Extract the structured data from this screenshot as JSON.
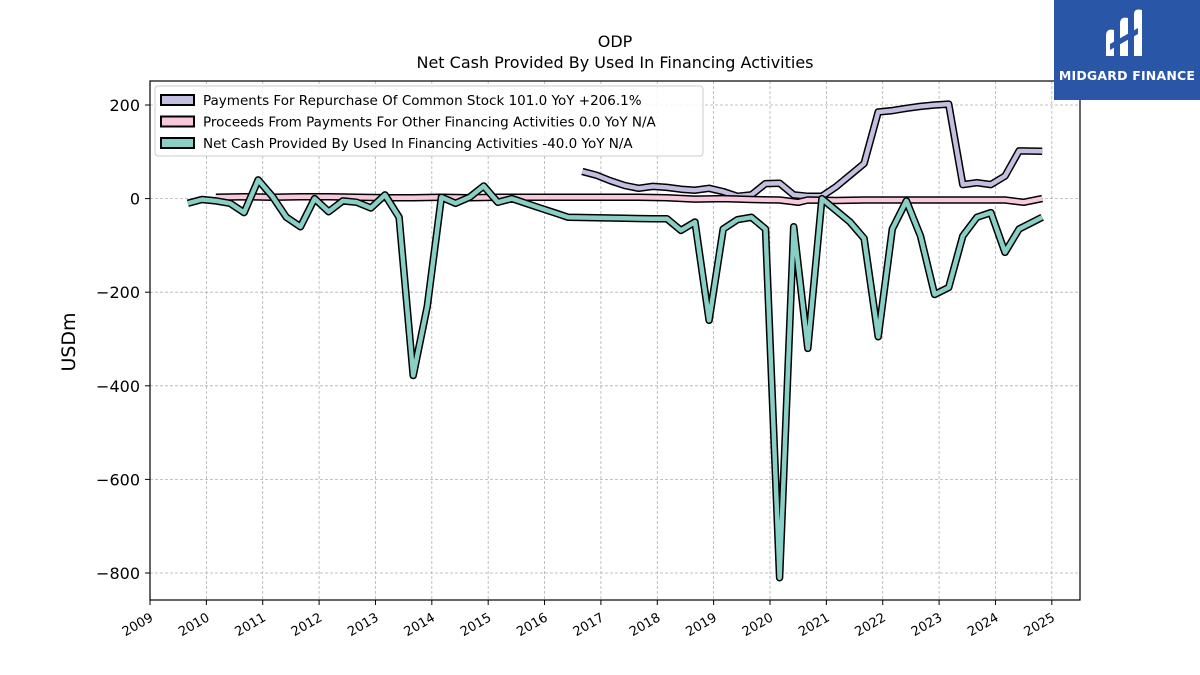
{
  "title_line1": "ODP",
  "title_line2": "Net Cash Provided By Used In Financing Activities",
  "brand": {
    "name": "MIDGARD FINANCE",
    "color": "#2a56a8"
  },
  "chart_data": {
    "type": "line",
    "ylabel": "USDm",
    "xlim": [
      2009.0,
      2025.5
    ],
    "ylim": [
      -860,
      250
    ],
    "yticks": [
      200,
      0,
      -200,
      -400,
      -600,
      -800
    ],
    "ytick_labels": [
      "200",
      "0",
      "−200",
      "−400",
      "−600",
      "−800"
    ],
    "xticks": [
      2009,
      2010,
      2011,
      2012,
      2013,
      2014,
      2015,
      2016,
      2017,
      2018,
      2019,
      2020,
      2021,
      2022,
      2023,
      2024,
      2025
    ],
    "grid": true,
    "legend_position": "top-left",
    "series": [
      {
        "name": "Payments For Repurchase Of Common Stock",
        "legend": "Payments For Repurchase Of Common Stock  101.0 YoY +206.1%",
        "color": "#c2bfe0",
        "points": [
          [
            2016.67,
            58
          ],
          [
            2016.92,
            50
          ],
          [
            2017.17,
            38
          ],
          [
            2017.42,
            28
          ],
          [
            2017.67,
            22
          ],
          [
            2017.92,
            26
          ],
          [
            2018.17,
            24
          ],
          [
            2018.42,
            20
          ],
          [
            2018.67,
            18
          ],
          [
            2018.92,
            22
          ],
          [
            2019.17,
            15
          ],
          [
            2019.42,
            5
          ],
          [
            2019.67,
            8
          ],
          [
            2019.92,
            32
          ],
          [
            2020.17,
            33
          ],
          [
            2020.42,
            8
          ],
          [
            2020.67,
            5
          ],
          [
            2020.92,
            5
          ],
          [
            2021.17,
            25
          ],
          [
            2021.42,
            50
          ],
          [
            2021.67,
            75
          ],
          [
            2021.92,
            185
          ],
          [
            2022.17,
            188
          ],
          [
            2022.42,
            193
          ],
          [
            2022.67,
            197
          ],
          [
            2022.92,
            200
          ],
          [
            2023.17,
            202
          ],
          [
            2023.42,
            30
          ],
          [
            2023.67,
            34
          ],
          [
            2023.92,
            30
          ],
          [
            2024.17,
            48
          ],
          [
            2024.42,
            102
          ],
          [
            2024.83,
            101
          ]
        ]
      },
      {
        "name": "Proceeds From Payments For Other Financing Activities",
        "legend": "Proceeds From Payments For Other Financing Activities  0.0 YoY N/A",
        "color": "#f8c8dc",
        "points": [
          [
            2010.17,
            3
          ],
          [
            2010.67,
            4
          ],
          [
            2011.17,
            3
          ],
          [
            2011.67,
            4
          ],
          [
            2012.17,
            4
          ],
          [
            2012.67,
            3
          ],
          [
            2013.17,
            2
          ],
          [
            2013.67,
            2
          ],
          [
            2014.17,
            3
          ],
          [
            2014.67,
            2
          ],
          [
            2015.17,
            3
          ],
          [
            2015.67,
            3
          ],
          [
            2016.17,
            3
          ],
          [
            2016.67,
            3
          ],
          [
            2017.17,
            3
          ],
          [
            2017.67,
            3
          ],
          [
            2018.17,
            2
          ],
          [
            2018.67,
            -1
          ],
          [
            2019.17,
            0
          ],
          [
            2019.67,
            -2
          ],
          [
            2020.17,
            -3
          ],
          [
            2020.5,
            -8
          ],
          [
            2020.67,
            -3
          ],
          [
            2021.17,
            -4
          ],
          [
            2021.67,
            -3
          ],
          [
            2022.17,
            -3
          ],
          [
            2022.67,
            -3
          ],
          [
            2023.17,
            -3
          ],
          [
            2023.67,
            -3
          ],
          [
            2024.17,
            -3
          ],
          [
            2024.5,
            -8
          ],
          [
            2024.83,
            0
          ]
        ]
      },
      {
        "name": "Net Cash Provided By Used In Financing Activities",
        "legend": "Net Cash Provided By Used In Financing Activities  -40.0 YoY N/A",
        "color": "#88cfc5",
        "points": [
          [
            2009.67,
            -10
          ],
          [
            2009.92,
            -2
          ],
          [
            2010.17,
            -5
          ],
          [
            2010.42,
            -10
          ],
          [
            2010.67,
            -30
          ],
          [
            2010.92,
            40
          ],
          [
            2011.17,
            5
          ],
          [
            2011.42,
            -40
          ],
          [
            2011.67,
            -60
          ],
          [
            2011.92,
            0
          ],
          [
            2012.17,
            -28
          ],
          [
            2012.42,
            -5
          ],
          [
            2012.67,
            -8
          ],
          [
            2012.92,
            -20
          ],
          [
            2013.17,
            8
          ],
          [
            2013.42,
            -40
          ],
          [
            2013.67,
            -378
          ],
          [
            2013.92,
            -230
          ],
          [
            2014.17,
            3
          ],
          [
            2014.42,
            -10
          ],
          [
            2014.67,
            3
          ],
          [
            2014.92,
            27
          ],
          [
            2015.17,
            -8
          ],
          [
            2015.42,
            0
          ],
          [
            2015.67,
            -10
          ],
          [
            2015.92,
            -20
          ],
          [
            2016.17,
            -30
          ],
          [
            2016.42,
            -40
          ],
          [
            2016.92,
            -41
          ],
          [
            2017.42,
            -42
          ],
          [
            2017.92,
            -43
          ],
          [
            2018.17,
            -43
          ],
          [
            2018.42,
            -68
          ],
          [
            2018.67,
            -50
          ],
          [
            2018.92,
            -260
          ],
          [
            2019.17,
            -65
          ],
          [
            2019.42,
            -45
          ],
          [
            2019.67,
            -40
          ],
          [
            2019.92,
            -65
          ],
          [
            2020.17,
            -810
          ],
          [
            2020.42,
            -60
          ],
          [
            2020.67,
            -320
          ],
          [
            2020.92,
            0
          ],
          [
            2021.17,
            -25
          ],
          [
            2021.42,
            -50
          ],
          [
            2021.67,
            -85
          ],
          [
            2021.92,
            -295
          ],
          [
            2022.17,
            -65
          ],
          [
            2022.42,
            -5
          ],
          [
            2022.67,
            -80
          ],
          [
            2022.92,
            -205
          ],
          [
            2023.17,
            -190
          ],
          [
            2023.42,
            -80
          ],
          [
            2023.67,
            -40
          ],
          [
            2023.92,
            -30
          ],
          [
            2024.17,
            -115
          ],
          [
            2024.42,
            -65
          ],
          [
            2024.83,
            -40
          ]
        ]
      }
    ]
  }
}
